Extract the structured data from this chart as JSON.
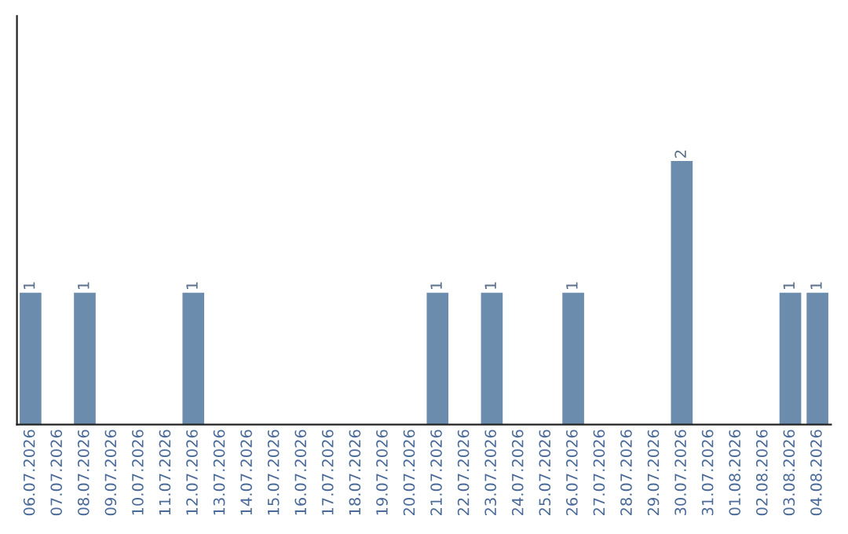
{
  "chart_data": {
    "type": "bar",
    "categories": [
      "06.07.2026",
      "07.07.2026",
      "08.07.2026",
      "09.07.2026",
      "10.07.2026",
      "11.07.2026",
      "12.07.2026",
      "13.07.2026",
      "14.07.2026",
      "15.07.2026",
      "16.07.2026",
      "17.07.2026",
      "18.07.2026",
      "19.07.2026",
      "20.07.2026",
      "21.07.2026",
      "22.07.2026",
      "23.07.2026",
      "24.07.2026",
      "25.07.2026",
      "26.07.2026",
      "27.07.2026",
      "28.07.2026",
      "29.07.2026",
      "30.07.2026",
      "31.07.2026",
      "01.08.2026",
      "02.08.2026",
      "03.08.2026",
      "04.08.2026"
    ],
    "values": [
      1,
      0,
      1,
      0,
      0,
      0,
      1,
      0,
      0,
      0,
      0,
      0,
      0,
      0,
      0,
      1,
      0,
      1,
      0,
      0,
      1,
      0,
      0,
      0,
      2,
      0,
      0,
      0,
      1,
      1
    ],
    "value_labels": [
      "1",
      null,
      "1",
      null,
      null,
      null,
      "1",
      null,
      null,
      null,
      null,
      null,
      null,
      null,
      null,
      "1",
      null,
      "1",
      null,
      null,
      "1",
      null,
      null,
      null,
      "2",
      null,
      null,
      null,
      "1",
      "1"
    ],
    "color": "#6b8cad",
    "ylim": [
      0,
      3.1
    ],
    "tick_labels": "x",
    "grid": false,
    "legend": false
  }
}
